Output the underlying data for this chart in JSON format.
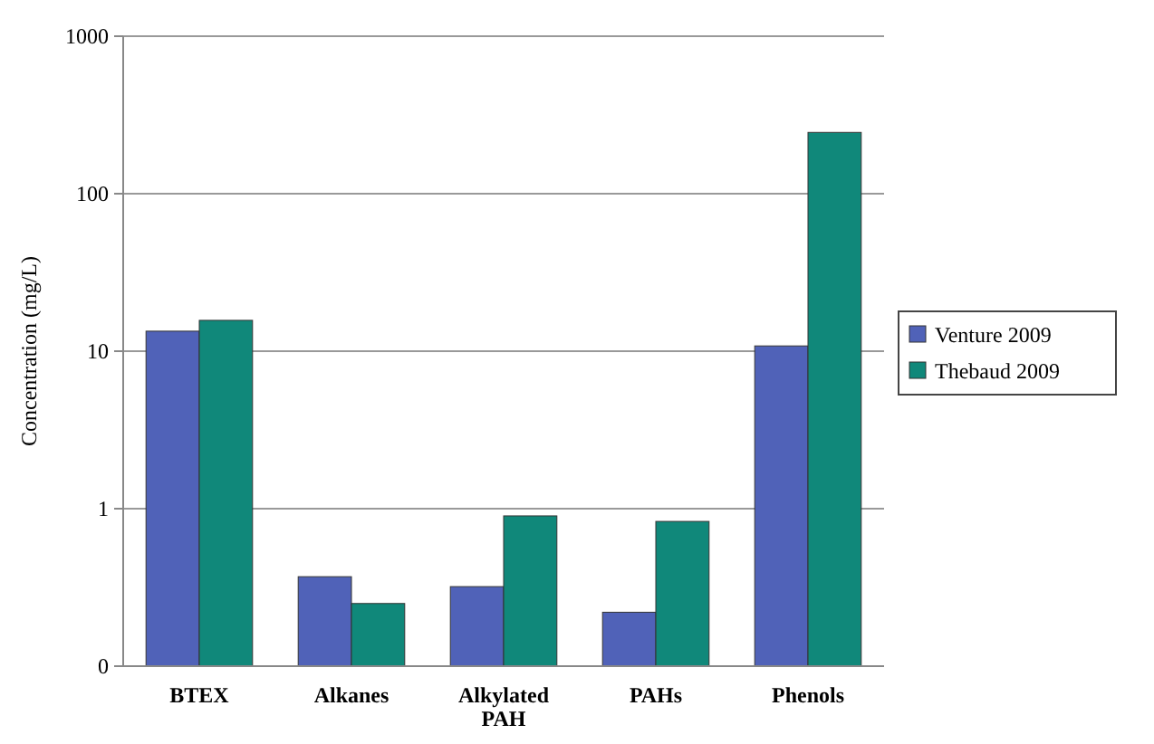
{
  "chart_data": {
    "type": "bar",
    "ylabel": "Concentration (mg/L)",
    "categories": [
      "BTEX",
      "Alkanes",
      "Alkylated PAH",
      "PAHs",
      "Phenols"
    ],
    "series": [
      {
        "name": "Venture 2009",
        "color": "#5062b8",
        "values": [
          13.4,
          0.37,
          0.32,
          0.22,
          10.8
        ]
      },
      {
        "name": "Thebaud 2009",
        "color": "#10887a",
        "values": [
          15.7,
          0.25,
          0.9,
          0.83,
          245
        ]
      }
    ],
    "log": true,
    "ylim": [
      0.1,
      1000
    ],
    "yticks": [
      {
        "value": 0.1,
        "label": "0"
      },
      1,
      10,
      100,
      1000
    ],
    "grid": "y",
    "legend": "right"
  }
}
